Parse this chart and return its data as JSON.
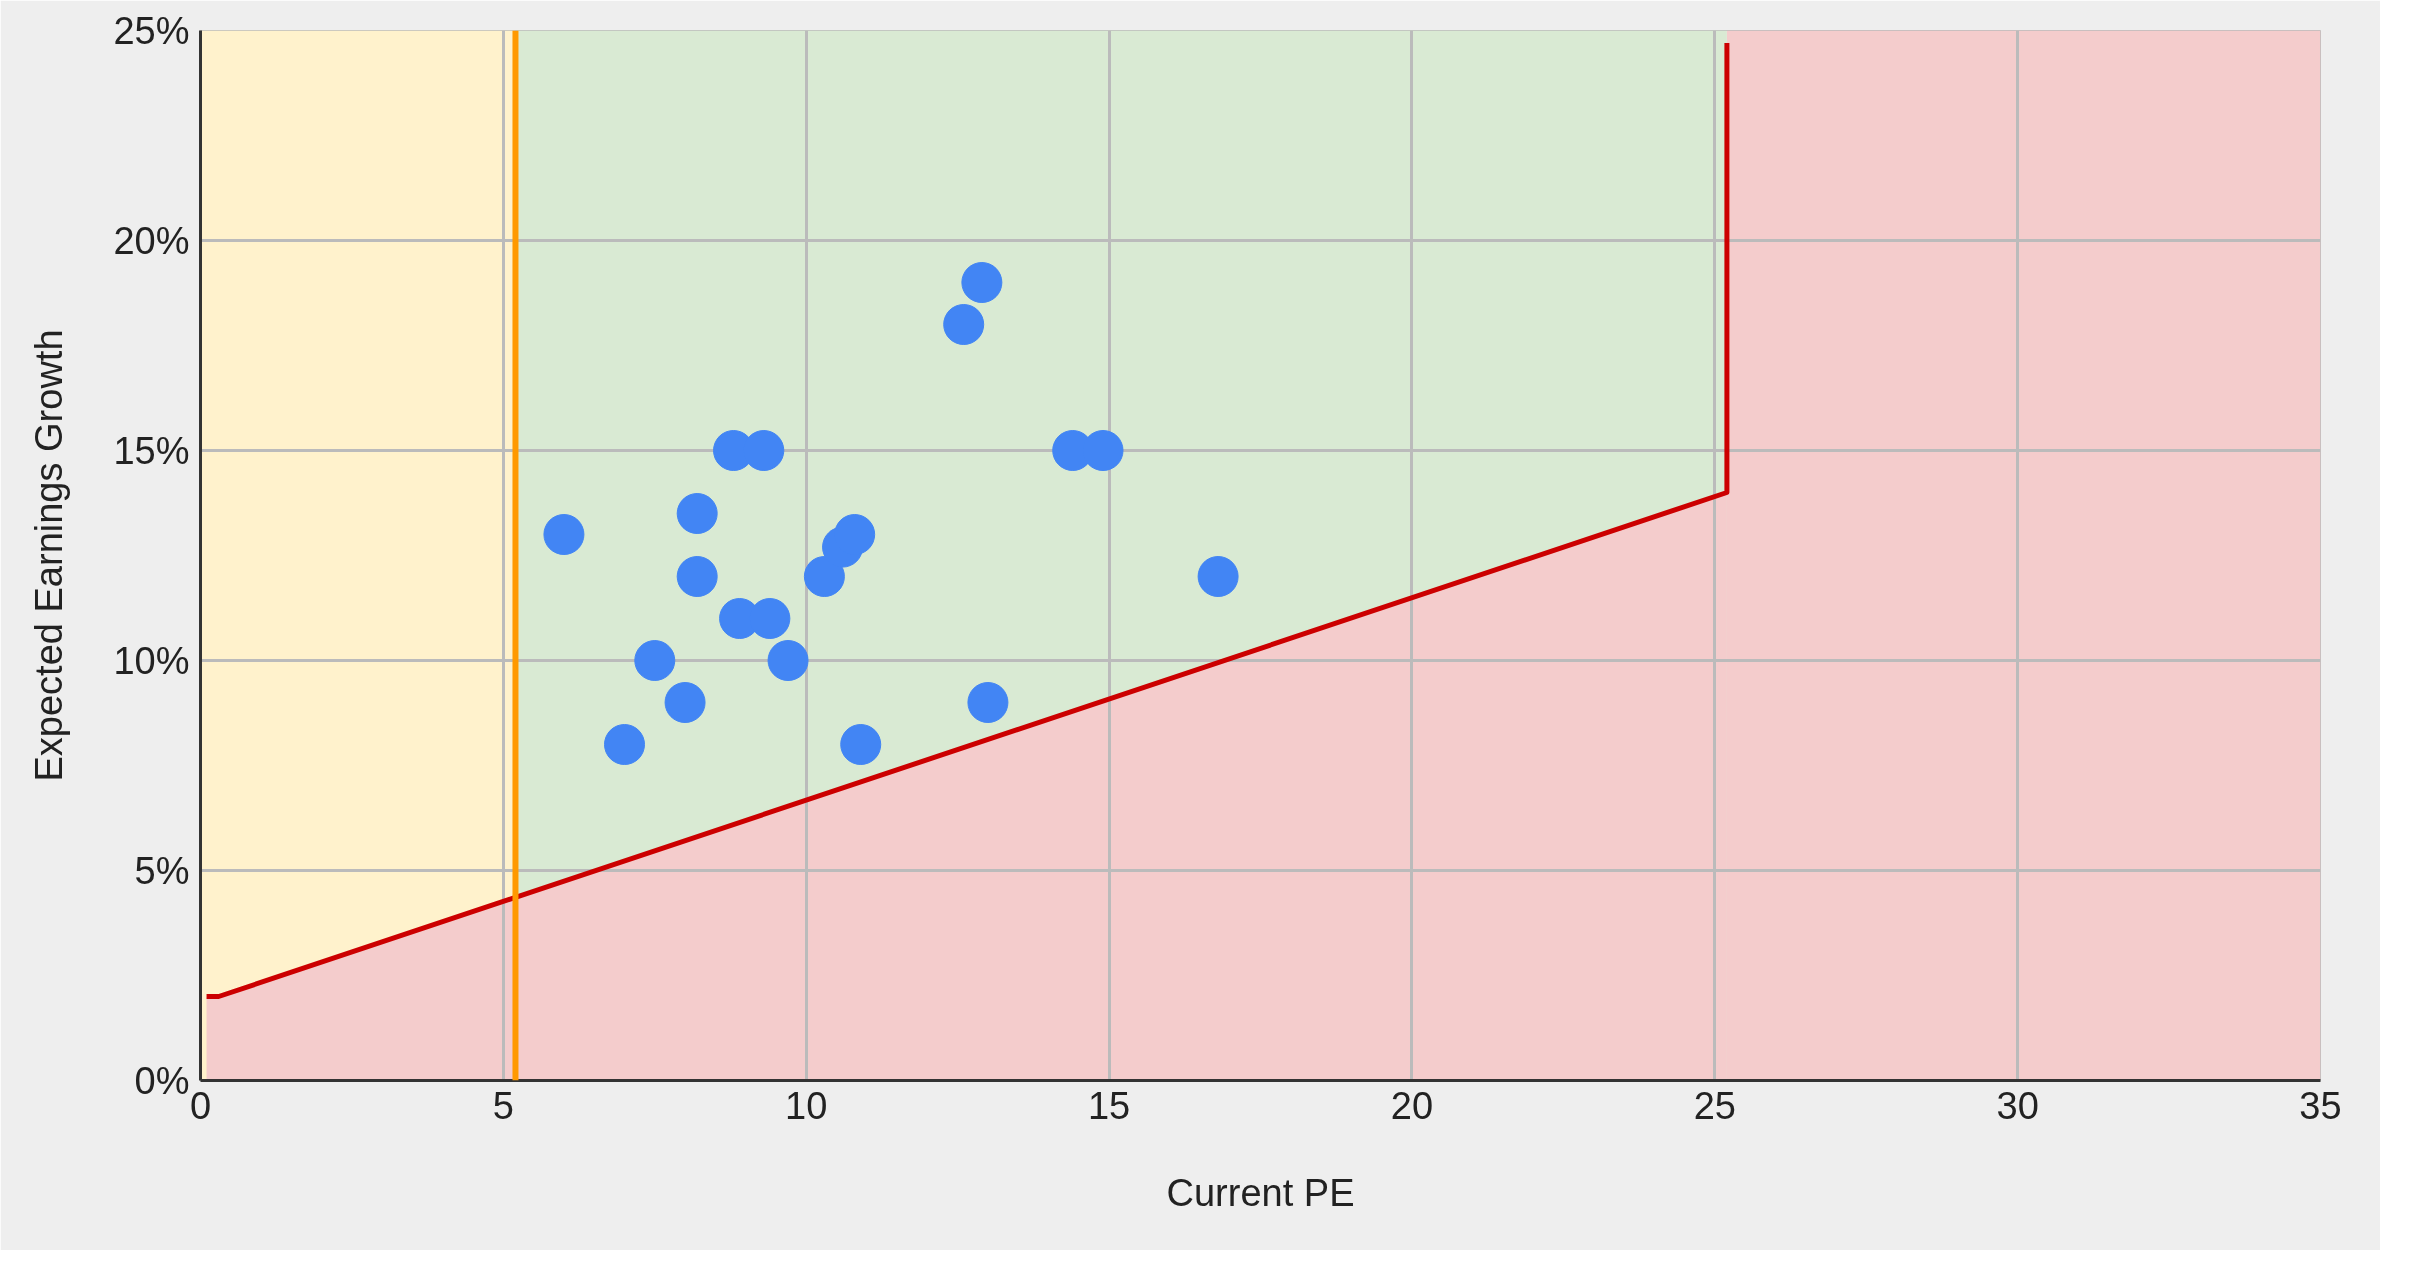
{
  "chart_data": {
    "type": "scatter",
    "xlabel": "Current PE",
    "ylabel": "Expected Earnings Growth",
    "xlim": [
      0,
      35
    ],
    "xticks": [
      0,
      5,
      10,
      15,
      20,
      25,
      30,
      35
    ],
    "ylim": [
      0,
      25
    ],
    "yticks": [
      {
        "value": 0,
        "label": "0%"
      },
      {
        "value": 5,
        "label": "5%"
      },
      {
        "value": 10,
        "label": "10%"
      },
      {
        "value": 15,
        "label": "15%"
      },
      {
        "value": 20,
        "label": "20%"
      },
      {
        "value": 25,
        "label": "25%"
      }
    ],
    "grid": true,
    "bands": [
      {
        "axis": "x",
        "from": 0,
        "to": 5.2,
        "color": "#fff2cc"
      },
      {
        "axis": "x",
        "from": 5.2,
        "to": 25.2,
        "color": "#d9ead3"
      },
      {
        "axis": "x",
        "from": 25.2,
        "to": 35,
        "color": "#f4cccc"
      }
    ],
    "ref_lines": [
      {
        "axis": "x",
        "value": 5.2,
        "color": "#ff9900"
      }
    ],
    "series": [
      {
        "type": "area",
        "color": "#f4cccc",
        "x": [
          0.1,
          0.3,
          25.2
        ],
        "values": [
          2,
          2,
          14
        ]
      },
      {
        "type": "line",
        "color": "#cc0000",
        "x": [
          0.1,
          0.3,
          25.2,
          25.2
        ],
        "values": [
          2,
          2,
          14,
          24.7
        ]
      },
      {
        "marker": "circle",
        "color": "#4285f4",
        "x": [
          6.0,
          7.0,
          7.5,
          8.0,
          8.2,
          8.2,
          8.8,
          8.9,
          9.3,
          9.4,
          9.7,
          10.3,
          10.6,
          10.8,
          10.9,
          12.6,
          12.9,
          13.0,
          14.4,
          14.9,
          16.8
        ],
        "values": [
          13,
          8,
          10,
          9,
          12,
          13.5,
          15,
          11,
          15,
          11,
          10,
          12,
          12.7,
          13,
          8,
          18,
          19,
          9,
          15,
          15,
          12
        ]
      }
    ]
  }
}
